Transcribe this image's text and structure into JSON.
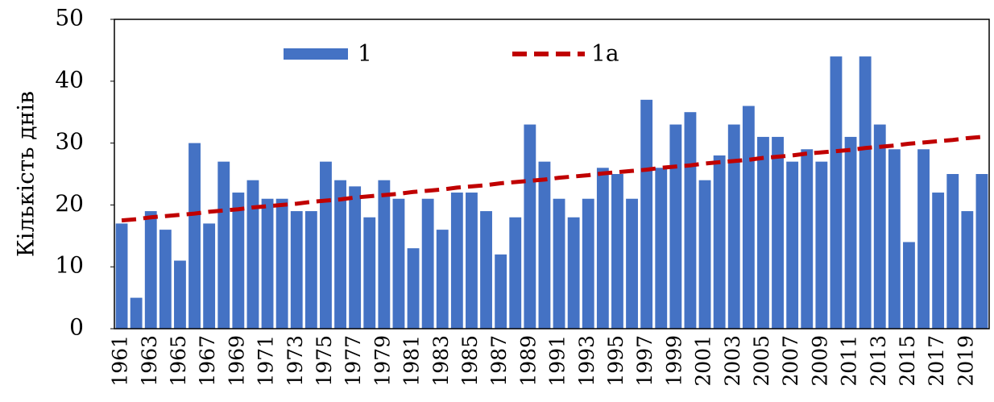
{
  "chart_data": {
    "type": "bar",
    "y_label": "Кількість днів",
    "categories": [
      "1961",
      null,
      "1963",
      null,
      "1965",
      null,
      "1967",
      null,
      "1969",
      null,
      "1971",
      null,
      "1973",
      null,
      "1975",
      null,
      "1977",
      null,
      "1979",
      null,
      "1981",
      null,
      "1983",
      null,
      "1985",
      null,
      "1987",
      null,
      "1989",
      null,
      "1991",
      null,
      "1993",
      null,
      "1995",
      null,
      "1997",
      null,
      "1999",
      null,
      "2001",
      null,
      "2003",
      null,
      "2005",
      null,
      "2007",
      null,
      "2009",
      null,
      "2011",
      null,
      "2013",
      null,
      "2015",
      null,
      "2017",
      null,
      "2019",
      null
    ],
    "series": [
      {
        "name": "1",
        "color": "#4472c4",
        "values": [
          17,
          5,
          19,
          16,
          11,
          30,
          17,
          27,
          22,
          24,
          21,
          21,
          19,
          19,
          27,
          24,
          23,
          18,
          24,
          21,
          13,
          21,
          16,
          22,
          22,
          19,
          12,
          18,
          33,
          27,
          21,
          18,
          21,
          26,
          25,
          21,
          37,
          26,
          33,
          35,
          24,
          28,
          33,
          36,
          31,
          31,
          27,
          29,
          27,
          44,
          31,
          44,
          33,
          29,
          14,
          29,
          22,
          25,
          19,
          25
        ]
      },
      {
        "name": "1a",
        "color": "#c00000",
        "line_style": "dashed",
        "values": [
          17.5,
          17.7,
          18.0,
          18.2,
          18.4,
          18.6,
          18.9,
          19.1,
          19.3,
          19.6,
          19.8,
          20.0,
          20.2,
          20.5,
          20.7,
          20.9,
          21.2,
          21.4,
          21.6,
          21.8,
          22.1,
          22.3,
          22.5,
          22.8,
          23.0,
          23.2,
          23.5,
          23.7,
          23.9,
          24.1,
          24.4,
          24.6,
          24.8,
          25.1,
          25.3,
          25.5,
          25.7,
          26.0,
          26.2,
          26.4,
          26.7,
          26.9,
          27.1,
          27.3,
          27.6,
          27.8,
          28.0,
          28.3,
          28.5,
          28.7,
          28.9,
          29.2,
          29.4,
          29.6,
          29.9,
          30.1,
          30.3,
          30.5,
          30.8,
          31.0
        ]
      }
    ],
    "ylim": [
      0,
      50
    ],
    "yticks": [
      0,
      10,
      20,
      30,
      40,
      50
    ],
    "grid": false,
    "legend": "top"
  }
}
